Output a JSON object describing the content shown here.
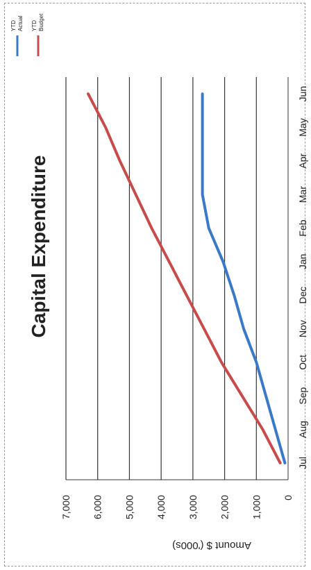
{
  "chart_data": {
    "type": "line",
    "title": "Capital Expenditure",
    "ylabel": "Amount $ ('000s)",
    "xlabel": "",
    "categories": [
      "Jul",
      "Aug",
      "Sep",
      "Oct",
      "Nov",
      "Dec",
      "Jan",
      "Feb",
      "Mar",
      "Apr",
      "May",
      "Jun"
    ],
    "y_ticks": [
      "0",
      "1,000",
      "2,000",
      "3,000",
      "4,000",
      "5,000",
      "6,000",
      "7,000"
    ],
    "ylim": [
      0,
      7000
    ],
    "grid": true,
    "legend_position": "top-right",
    "series": [
      {
        "name": "YTD Actual",
        "color": "#3a78c8",
        "values": [
          100,
          400,
          700,
          1000,
          1400,
          1700,
          2050,
          2500,
          2700,
          2700,
          2700,
          2700
        ]
      },
      {
        "name": "YTD Budget",
        "color": "#c84b4b",
        "values": [
          250,
          800,
          1450,
          2100,
          2650,
          3200,
          3750,
          4300,
          4800,
          5300,
          5750,
          6300
        ]
      }
    ]
  }
}
